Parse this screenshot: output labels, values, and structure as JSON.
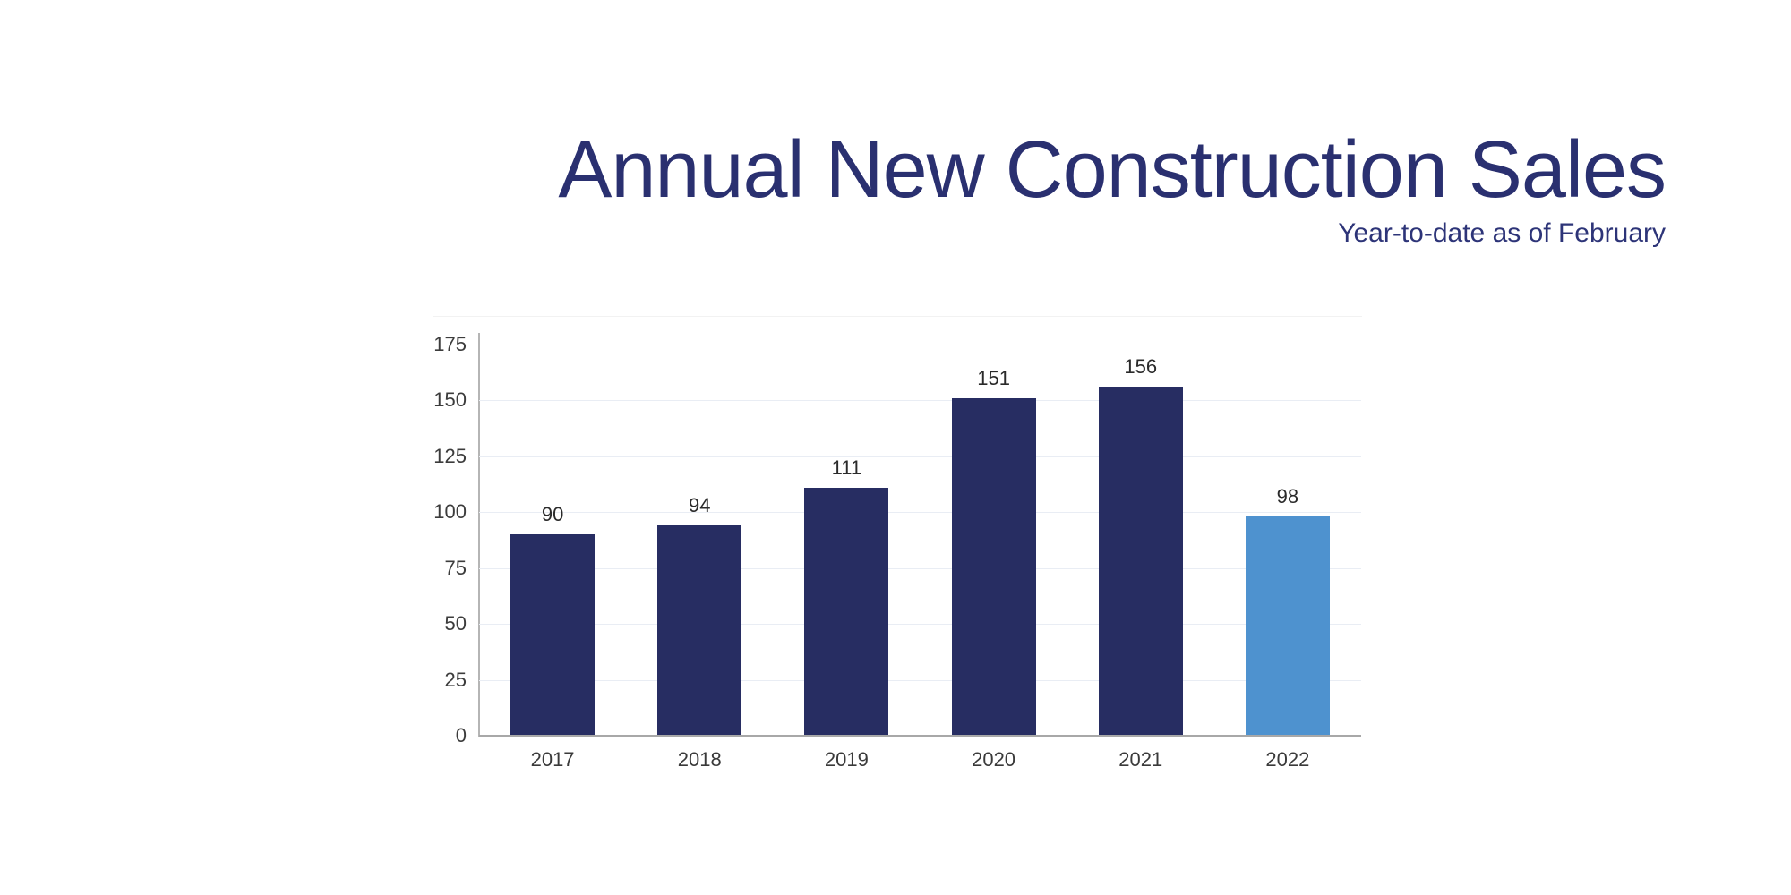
{
  "page": {
    "background_color": "#ffffff"
  },
  "header": {
    "title": "Annual New Construction Sales",
    "subtitle": "Year-to-date as of February",
    "title_color": "#2A3070"
  },
  "chart_data": {
    "type": "bar",
    "title": "Annual New Construction Sales",
    "subtitle": "Year-to-date as of February",
    "categories": [
      "2017",
      "2018",
      "2019",
      "2020",
      "2021",
      "2022"
    ],
    "values": [
      90,
      94,
      111,
      151,
      156,
      98
    ],
    "bar_colors": [
      "#272D62",
      "#272D62",
      "#272D62",
      "#272D62",
      "#272D62",
      "#4E92CF"
    ],
    "value_labels": [
      "90",
      "94",
      "111",
      "151",
      "156",
      "98"
    ],
    "xlabel": "",
    "ylabel": "",
    "ylim": [
      0,
      175
    ],
    "yticks": [
      0,
      25,
      50,
      75,
      100,
      125,
      150,
      175
    ],
    "grid": true,
    "legend": "none",
    "colors": {
      "bar_primary": "#272D62",
      "bar_highlight": "#4E92CF",
      "gridline": "#E9EDF4",
      "axis_line": "#B5B5B5",
      "baseline": "#A8A8A8",
      "tick_text": "#3C3C3C",
      "value_text": "#2A2A2A"
    }
  }
}
